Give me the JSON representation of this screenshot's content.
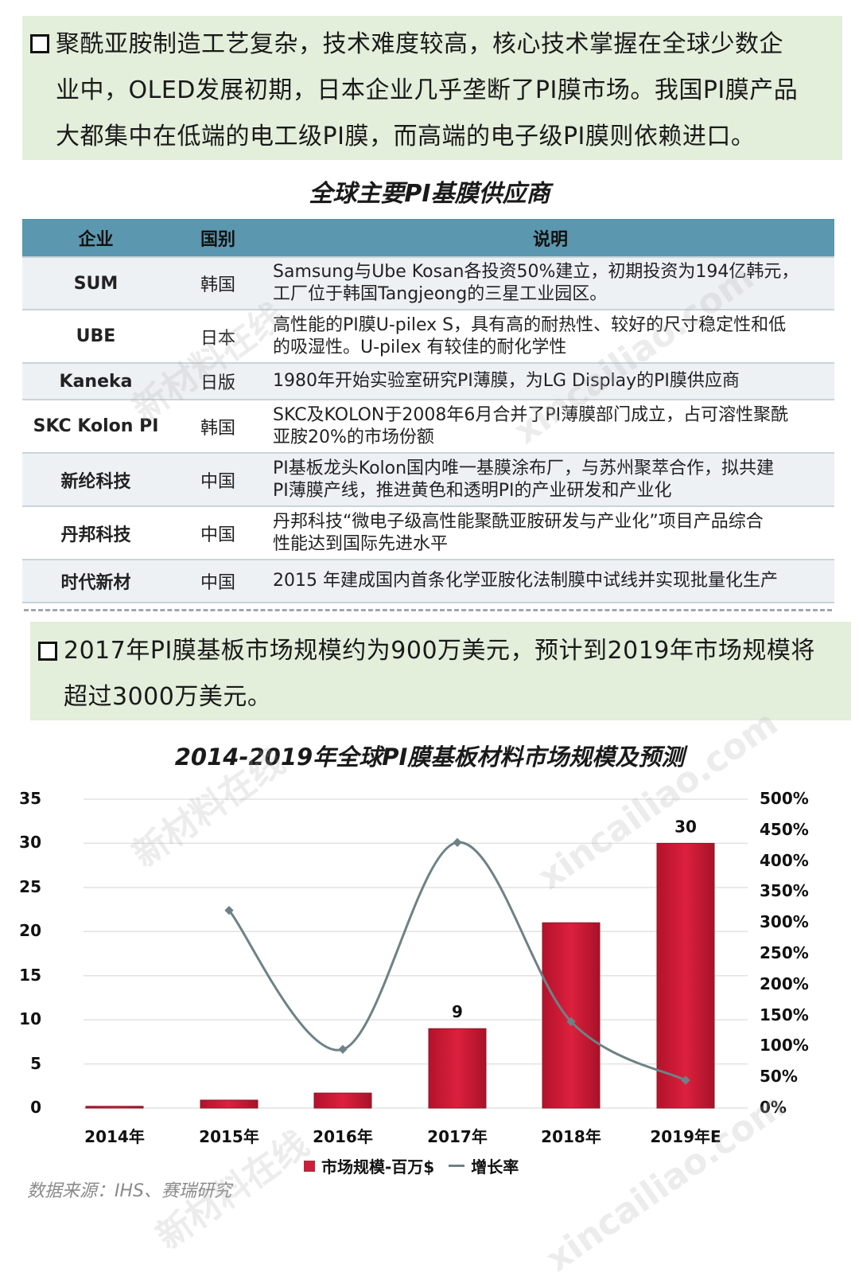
{
  "intro": {
    "lines": [
      "聚酰亚胺制造工艺复杂，技术难度较高，核心技术掌握在全球少数企",
      "业中，OLED发展初期，日本企业几乎垄断了PI膜市场。我国PI膜产品",
      "大都集中在低端的电工级PI膜，而高端的电子级PI膜则依赖进口。"
    ]
  },
  "table": {
    "title": "全球主要PI基膜供应商",
    "headers": [
      "企业",
      "国别",
      "说明"
    ],
    "rows": [
      {
        "company": "SUM",
        "country": "韩国",
        "desc": [
          "Samsung与Ube Kosan各投资50%建立，初期投资为194亿韩元，",
          "工厂位于韩国Tangjeong的三星工业园区。"
        ]
      },
      {
        "company": "UBE",
        "country": "日本",
        "desc": [
          "高性能的PI膜U-pilex S，具有高的耐热性、较好的尺寸稳定性和低",
          "的吸湿性。U-pilex 有较佳的耐化学性"
        ]
      },
      {
        "company": "Kaneka",
        "country": "日版",
        "desc": [
          "1980年开始实验室研究PI薄膜，为LG Display的PI膜供应商"
        ]
      },
      {
        "company": "SKC Kolon PI",
        "country": "韩国",
        "desc": [
          "SKC及KOLON于2008年6月合并了PI薄膜部门成立，占可溶性聚酰",
          "亚胺20%的市场份额"
        ]
      },
      {
        "company": "新纶科技",
        "country": "中国",
        "desc": [
          "PI基板龙头Kolon国内唯一基膜涂布厂，与苏州聚萃合作，拟共建",
          "PI薄膜产线，推进黄色和透明PI的产业研发和产业化"
        ]
      },
      {
        "company": "丹邦科技",
        "country": "中国",
        "desc": [
          "丹邦科技“微电子级高性能聚酰亚胺研发与产业化”项目产品综合",
          "性能达到国际先进水平"
        ]
      },
      {
        "company": "时代新材",
        "country": "中国",
        "desc": [
          "2015 年建成国内首条化学亚胺化法制膜中试线并实现批量化生产"
        ]
      }
    ]
  },
  "summary": {
    "lines": [
      "2017年PI膜基板市场规模约为900万美元，预计到2019年市场规模将",
      "超过3000万美元。"
    ]
  },
  "chart_data": {
    "type": "bar",
    "title": "2014-2019年全球PI膜基板材料市场规模及预测",
    "categories": [
      "2014年",
      "2015年",
      "2016年",
      "2017年",
      "2018年",
      "2019年E"
    ],
    "series": [
      {
        "name": "市场规模-百万$",
        "type": "bar",
        "axis": "left",
        "color": "#d41f3a",
        "values": [
          0.2,
          0.9,
          1.7,
          9,
          21,
          30
        ],
        "data_labels": {
          "2017年": "9",
          "2019年E": "30"
        }
      },
      {
        "name": "增长率",
        "type": "line",
        "axis": "right",
        "color": "#6e8285",
        "values": [
          null,
          3.2,
          0.95,
          4.3,
          1.4,
          0.45
        ]
      }
    ],
    "y_left": {
      "ticks": [
        "0",
        "5",
        "10",
        "15",
        "20",
        "25",
        "30",
        "35"
      ],
      "ylim": [
        0,
        35
      ]
    },
    "y_right": {
      "ticks": [
        "0%",
        "50%",
        "100%",
        "150%",
        "200%",
        "250%",
        "300%",
        "350%",
        "400%",
        "450%",
        "500%"
      ],
      "ylim": [
        0,
        5
      ]
    },
    "grid": true,
    "legend_position": "bottom"
  },
  "source": "数据来源：IHS、赛瑞研究",
  "watermark": [
    "新材料在线",
    "xincailiao.com"
  ]
}
